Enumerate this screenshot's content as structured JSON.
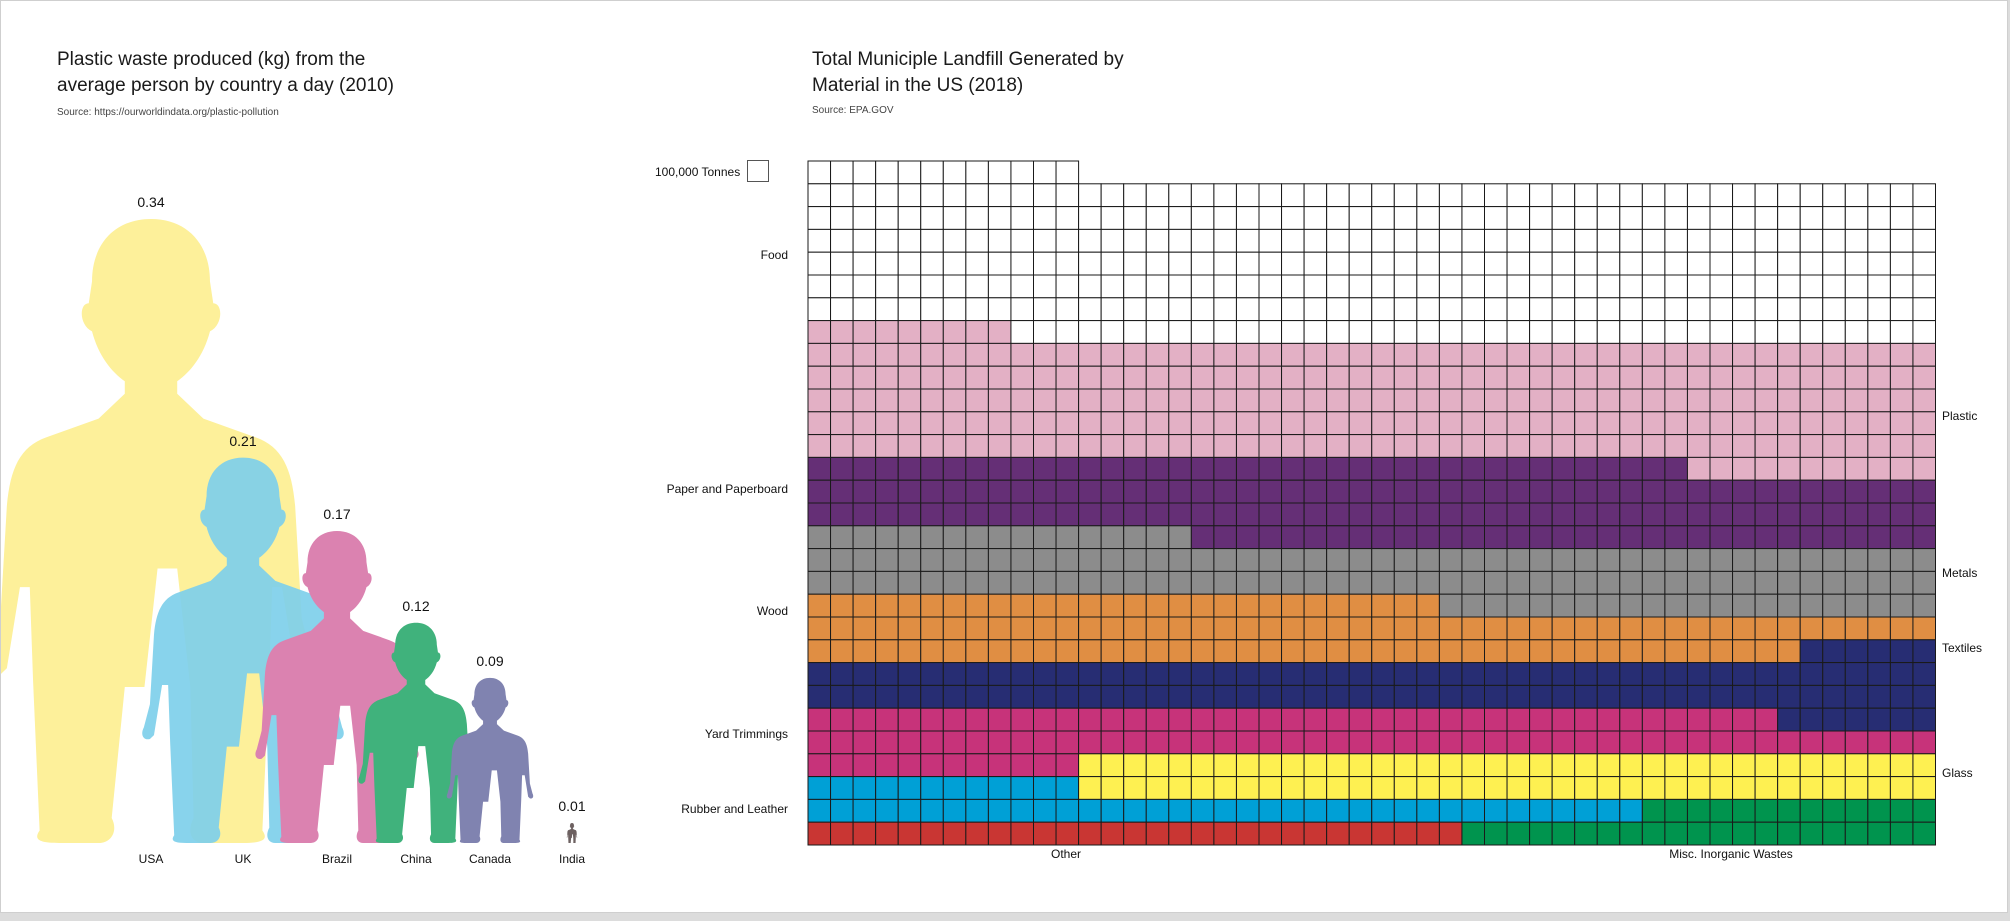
{
  "left_panel": {
    "title_line1": "Plastic  waste produced (kg) from the",
    "title_line2": "average person by country a day (2010)",
    "source": "Source: https://ourworldindata.org/plastic-pollution"
  },
  "right_panel": {
    "title_line1": "Total Municiple Landfill Generated by",
    "title_line2": "Material in the US (2018)",
    "source": "Source: EPA.GOV",
    "legend_unit_label": "100,000 Tonnes"
  },
  "chart_data": [
    {
      "type": "bar",
      "title": "Plastic  waste produced (kg) from the average person by country a day (2010)",
      "subtitle": "Source: https://ourworldindata.org/plastic-pollution",
      "categories": [
        "USA",
        "UK",
        "Brazil",
        "China",
        "Canada",
        "India"
      ],
      "values": [
        0.34,
        0.21,
        0.17,
        0.12,
        0.09,
        0.01
      ],
      "value_labels": [
        "0.34",
        "0.21",
        "0.17",
        "0.12",
        "0.09",
        "0.01"
      ],
      "colors": [
        "#fdf09a",
        "#7ecfea",
        "#db82b0",
        "#40b27c",
        "#8083b0",
        "#6d6161"
      ],
      "mark": "person-silhouette",
      "xlabel": "",
      "ylabel": ""
    },
    {
      "type": "heatmap",
      "subtype": "waffle",
      "title": "Total Municiple Landfill Generated by Material in the US (2018)",
      "subtitle": "Source: EPA.GOV",
      "unit": "100,000 Tonnes",
      "columns": 50,
      "rows": [
        [
          {
            "c": "Food",
            "n": 12
          }
        ],
        [
          {
            "c": "Food",
            "n": 50
          }
        ],
        [
          {
            "c": "Food",
            "n": 50
          }
        ],
        [
          {
            "c": "Food",
            "n": 50
          }
        ],
        [
          {
            "c": "Food",
            "n": 50
          }
        ],
        [
          {
            "c": "Food",
            "n": 50
          }
        ],
        [
          {
            "c": "Food",
            "n": 50
          }
        ],
        [
          {
            "c": "Plastic",
            "n": 9
          },
          {
            "c": "Food",
            "n": 41
          }
        ],
        [
          {
            "c": "Plastic",
            "n": 50
          }
        ],
        [
          {
            "c": "Plastic",
            "n": 50
          }
        ],
        [
          {
            "c": "Plastic",
            "n": 50
          }
        ],
        [
          {
            "c": "Plastic",
            "n": 50
          }
        ],
        [
          {
            "c": "Plastic",
            "n": 50
          }
        ],
        [
          {
            "c": "Paper and Paperboard",
            "n": 39
          },
          {
            "c": "Plastic",
            "n": 11
          }
        ],
        [
          {
            "c": "Paper and Paperboard",
            "n": 50
          }
        ],
        [
          {
            "c": "Paper and Paperboard",
            "n": 50
          }
        ],
        [
          {
            "c": "Metals",
            "n": 17
          },
          {
            "c": "Paper and Paperboard",
            "n": 33
          }
        ],
        [
          {
            "c": "Metals",
            "n": 50
          }
        ],
        [
          {
            "c": "Metals",
            "n": 50
          }
        ],
        [
          {
            "c": "Wood",
            "n": 28
          },
          {
            "c": "Metals",
            "n": 22
          }
        ],
        [
          {
            "c": "Wood",
            "n": 50
          }
        ],
        [
          {
            "c": "Wood",
            "n": 44
          },
          {
            "c": "Textiles",
            "n": 6
          }
        ],
        [
          {
            "c": "Textiles",
            "n": 50
          }
        ],
        [
          {
            "c": "Textiles",
            "n": 50
          }
        ],
        [
          {
            "c": "Yard Trimmings",
            "n": 43
          },
          {
            "c": "Textiles",
            "n": 7
          }
        ],
        [
          {
            "c": "Yard Trimmings",
            "n": 50
          }
        ],
        [
          {
            "c": "Yard Trimmings",
            "n": 12
          },
          {
            "c": "Glass",
            "n": 38
          }
        ],
        [
          {
            "c": "Rubber and Leather",
            "n": 12
          },
          {
            "c": "Glass",
            "n": 38
          }
        ],
        [
          {
            "c": "Rubber and Leather",
            "n": 37
          },
          {
            "c": "Misc. Inorganic Wastes",
            "n": 13
          }
        ],
        [
          {
            "c": "Other",
            "n": 29
          },
          {
            "c": "Misc. Inorganic Wastes",
            "n": 21
          }
        ]
      ],
      "categories": [
        {
          "name": "Food",
          "color": "#ffffff",
          "cells": 353,
          "label_side": "left"
        },
        {
          "name": "Plastic",
          "color": "#e3b0c5",
          "cells": 270,
          "label_side": "right"
        },
        {
          "name": "Paper and Paperboard",
          "color": "#652f76",
          "cells": 172,
          "label_side": "left"
        },
        {
          "name": "Metals",
          "color": "#8c8c8c",
          "cells": 139,
          "label_side": "right"
        },
        {
          "name": "Wood",
          "color": "#e08e43",
          "cells": 122,
          "label_side": "left"
        },
        {
          "name": "Textiles",
          "color": "#272d73",
          "cells": 113,
          "label_side": "right"
        },
        {
          "name": "Yard Trimmings",
          "color": "#c7337a",
          "cells": 105,
          "label_side": "left"
        },
        {
          "name": "Glass",
          "color": "#fef051",
          "cells": 76,
          "label_side": "right"
        },
        {
          "name": "Rubber and Leather",
          "color": "#00a0d6",
          "cells": 49,
          "label_side": "left"
        },
        {
          "name": "Other",
          "color": "#c93633",
          "cells": 29,
          "label_side": "bottom"
        },
        {
          "name": "Misc. Inorganic Wastes",
          "color": "#00944e",
          "cells": 34,
          "label_side": "bottom"
        }
      ]
    }
  ]
}
